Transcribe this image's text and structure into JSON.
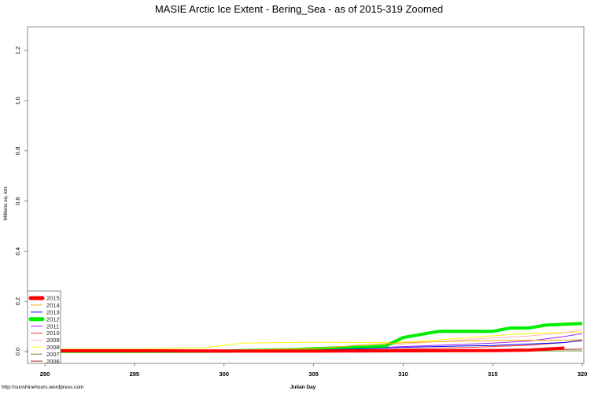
{
  "chart_data": {
    "type": "line",
    "title": "MASIE Arctic Ice Extent - Bering_Sea - as of 2015-319 Zoomed",
    "xlabel": "Julian Day",
    "ylabel": "Millions sq. km.",
    "xlim": [
      289,
      320
    ],
    "ylim": [
      -0.01,
      1.31
    ],
    "x_ticks": [
      290,
      295,
      300,
      305,
      310,
      315,
      320
    ],
    "y_ticks": [
      "0.0",
      "0.2",
      "0.4",
      "0.6",
      "0.8",
      "1.0",
      "1.2"
    ],
    "y_tick_values": [
      0.0,
      0.2,
      0.4,
      0.6,
      0.8,
      1.0,
      1.2
    ],
    "grid": false,
    "legend_position": "bottom-left",
    "footer_credit": "http://sunshinehours.wordpress.com",
    "series": [
      {
        "name": "2015",
        "color": "#ff0000",
        "width": 4,
        "x": [
          289,
          295,
          300,
          305,
          310,
          315,
          317,
          318,
          319
        ],
        "values": [
          0.003,
          0.003,
          0.002,
          0.002,
          0.003,
          0.004,
          0.006,
          0.01,
          0.014
        ]
      },
      {
        "name": "2014",
        "color": "#ffa500",
        "width": 1,
        "x": [
          289,
          295,
          300,
          305,
          308,
          310,
          313,
          316,
          318,
          320
        ],
        "values": [
          0.006,
          0.006,
          0.005,
          0.012,
          0.028,
          0.035,
          0.042,
          0.045,
          0.045,
          0.047
        ]
      },
      {
        "name": "2013",
        "color": "#0000ff",
        "width": 1,
        "x": [
          289,
          295,
          300,
          305,
          308,
          310,
          313,
          315,
          317,
          319,
          320
        ],
        "values": [
          0.002,
          0.002,
          0.002,
          0.006,
          0.012,
          0.017,
          0.022,
          0.024,
          0.03,
          0.036,
          0.045
        ]
      },
      {
        "name": "2012",
        "color": "#00ee00",
        "width": 4,
        "x": [
          289,
          295,
          300,
          304,
          306,
          308,
          309,
          310,
          312,
          315,
          316,
          317,
          318,
          320
        ],
        "values": [
          0.001,
          0.001,
          0.002,
          0.008,
          0.014,
          0.018,
          0.022,
          0.056,
          0.081,
          0.081,
          0.094,
          0.094,
          0.106,
          0.112
        ]
      },
      {
        "name": "2011",
        "color": "#a020f0",
        "width": 1,
        "x": [
          289,
          295,
          300,
          305,
          308,
          310,
          313,
          315,
          317,
          319,
          320
        ],
        "values": [
          0.003,
          0.003,
          0.003,
          0.008,
          0.014,
          0.02,
          0.028,
          0.034,
          0.042,
          0.06,
          0.072
        ]
      },
      {
        "name": "2010",
        "color": "#ff3030",
        "width": 1,
        "x": [
          289,
          295,
          300,
          305,
          310,
          313,
          315,
          317,
          319,
          320
        ],
        "values": [
          0.004,
          0.004,
          0.004,
          0.006,
          0.01,
          0.015,
          0.02,
          0.025,
          0.036,
          0.044
        ]
      },
      {
        "name": "2009",
        "color": "#ffb6c1",
        "width": 1,
        "x": [
          289,
          295,
          300,
          305,
          308,
          310,
          313,
          315,
          317,
          319,
          320
        ],
        "values": [
          0.008,
          0.008,
          0.008,
          0.01,
          0.02,
          0.03,
          0.045,
          0.055,
          0.062,
          0.075,
          0.087
        ]
      },
      {
        "name": "2008",
        "color": "#ffff00",
        "width": 1,
        "x": [
          289,
          295,
          299,
          301,
          305,
          309,
          310,
          312,
          314,
          316,
          318,
          320
        ],
        "values": [
          0.01,
          0.01,
          0.016,
          0.034,
          0.037,
          0.036,
          0.038,
          0.046,
          0.058,
          0.068,
          0.074,
          0.078
        ]
      },
      {
        "name": "2007",
        "color": "#6b8e23",
        "width": 1,
        "x": [
          289,
          295,
          300,
          305,
          310,
          315,
          320
        ],
        "values": [
          0.0,
          0.0,
          0.0,
          0.001,
          0.001,
          0.002,
          0.003
        ]
      },
      {
        "name": "2006",
        "color": "#a52a2a",
        "width": 1,
        "x": [
          289,
          295,
          300,
          305,
          310,
          315,
          318,
          320
        ],
        "values": [
          0.002,
          0.002,
          0.002,
          0.003,
          0.004,
          0.005,
          0.007,
          0.01
        ]
      }
    ]
  }
}
